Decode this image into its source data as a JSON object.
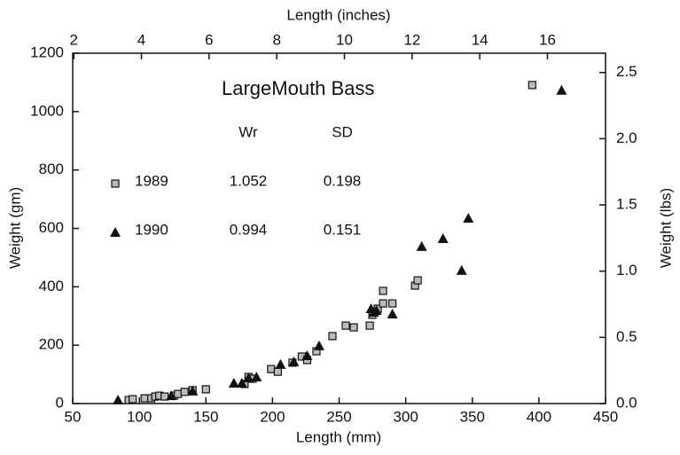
{
  "chart_data": {
    "type": "scatter",
    "title": "LargeMouth Bass",
    "x_label": "Length (mm)",
    "x2_label": "Length (inches)",
    "y_label": "Weight (gm)",
    "y2_label": "Weight (lbs)",
    "xlim": [
      50,
      450
    ],
    "xticks": [
      50,
      100,
      150,
      200,
      250,
      300,
      350,
      400,
      450
    ],
    "x2lim": [
      1.9685,
      17.7165
    ],
    "x2ticks": [
      2,
      4,
      6,
      8,
      10,
      12,
      14,
      16
    ],
    "ylim": [
      0,
      1200
    ],
    "yticks": [
      0,
      200,
      400,
      600,
      800,
      1000,
      1200
    ],
    "y2lim": [
      0,
      2.6455
    ],
    "y2ticks": [
      {
        "value": 0,
        "label": "0.0"
      },
      0.5,
      {
        "value": 1,
        "label": "1.0"
      },
      1.5,
      {
        "value": 2,
        "label": "2.0"
      },
      2.5
    ],
    "table": {
      "headers": [
        "Wr",
        "SD"
      ],
      "rows": [
        [
          1.052,
          0.198
        ],
        [
          0.994,
          0.151
        ]
      ]
    },
    "series": [
      {
        "name": "1989",
        "marker": "square",
        "color": "#bbbbbb",
        "x": [
          92,
          95,
          104,
          109,
          112,
          115,
          119,
          126,
          129,
          134,
          140,
          150,
          179,
          182,
          185,
          199,
          204,
          215,
          222,
          226,
          233,
          245,
          255,
          261,
          273,
          275,
          279,
          283,
          283,
          290,
          307,
          309,
          395
        ],
        "values": [
          12,
          15,
          18,
          18,
          24,
          27,
          24,
          27,
          33,
          40,
          46,
          49,
          67,
          91,
          85,
          118,
          109,
          140,
          161,
          149,
          179,
          231,
          267,
          261,
          267,
          304,
          325,
          343,
          386,
          343,
          404,
          422,
          1091
        ]
      },
      {
        "name": "1990",
        "marker": "triangle",
        "color": "#111111",
        "x": [
          84,
          124,
          140,
          171,
          177,
          182,
          188,
          206,
          216,
          226,
          235,
          274,
          276,
          278,
          290,
          312,
          328,
          342,
          347,
          417
        ],
        "values": [
          12,
          27,
          43,
          70,
          70,
          88,
          91,
          134,
          143,
          164,
          198,
          325,
          313,
          319,
          307,
          538,
          565,
          456,
          635,
          1073
        ]
      }
    ]
  }
}
